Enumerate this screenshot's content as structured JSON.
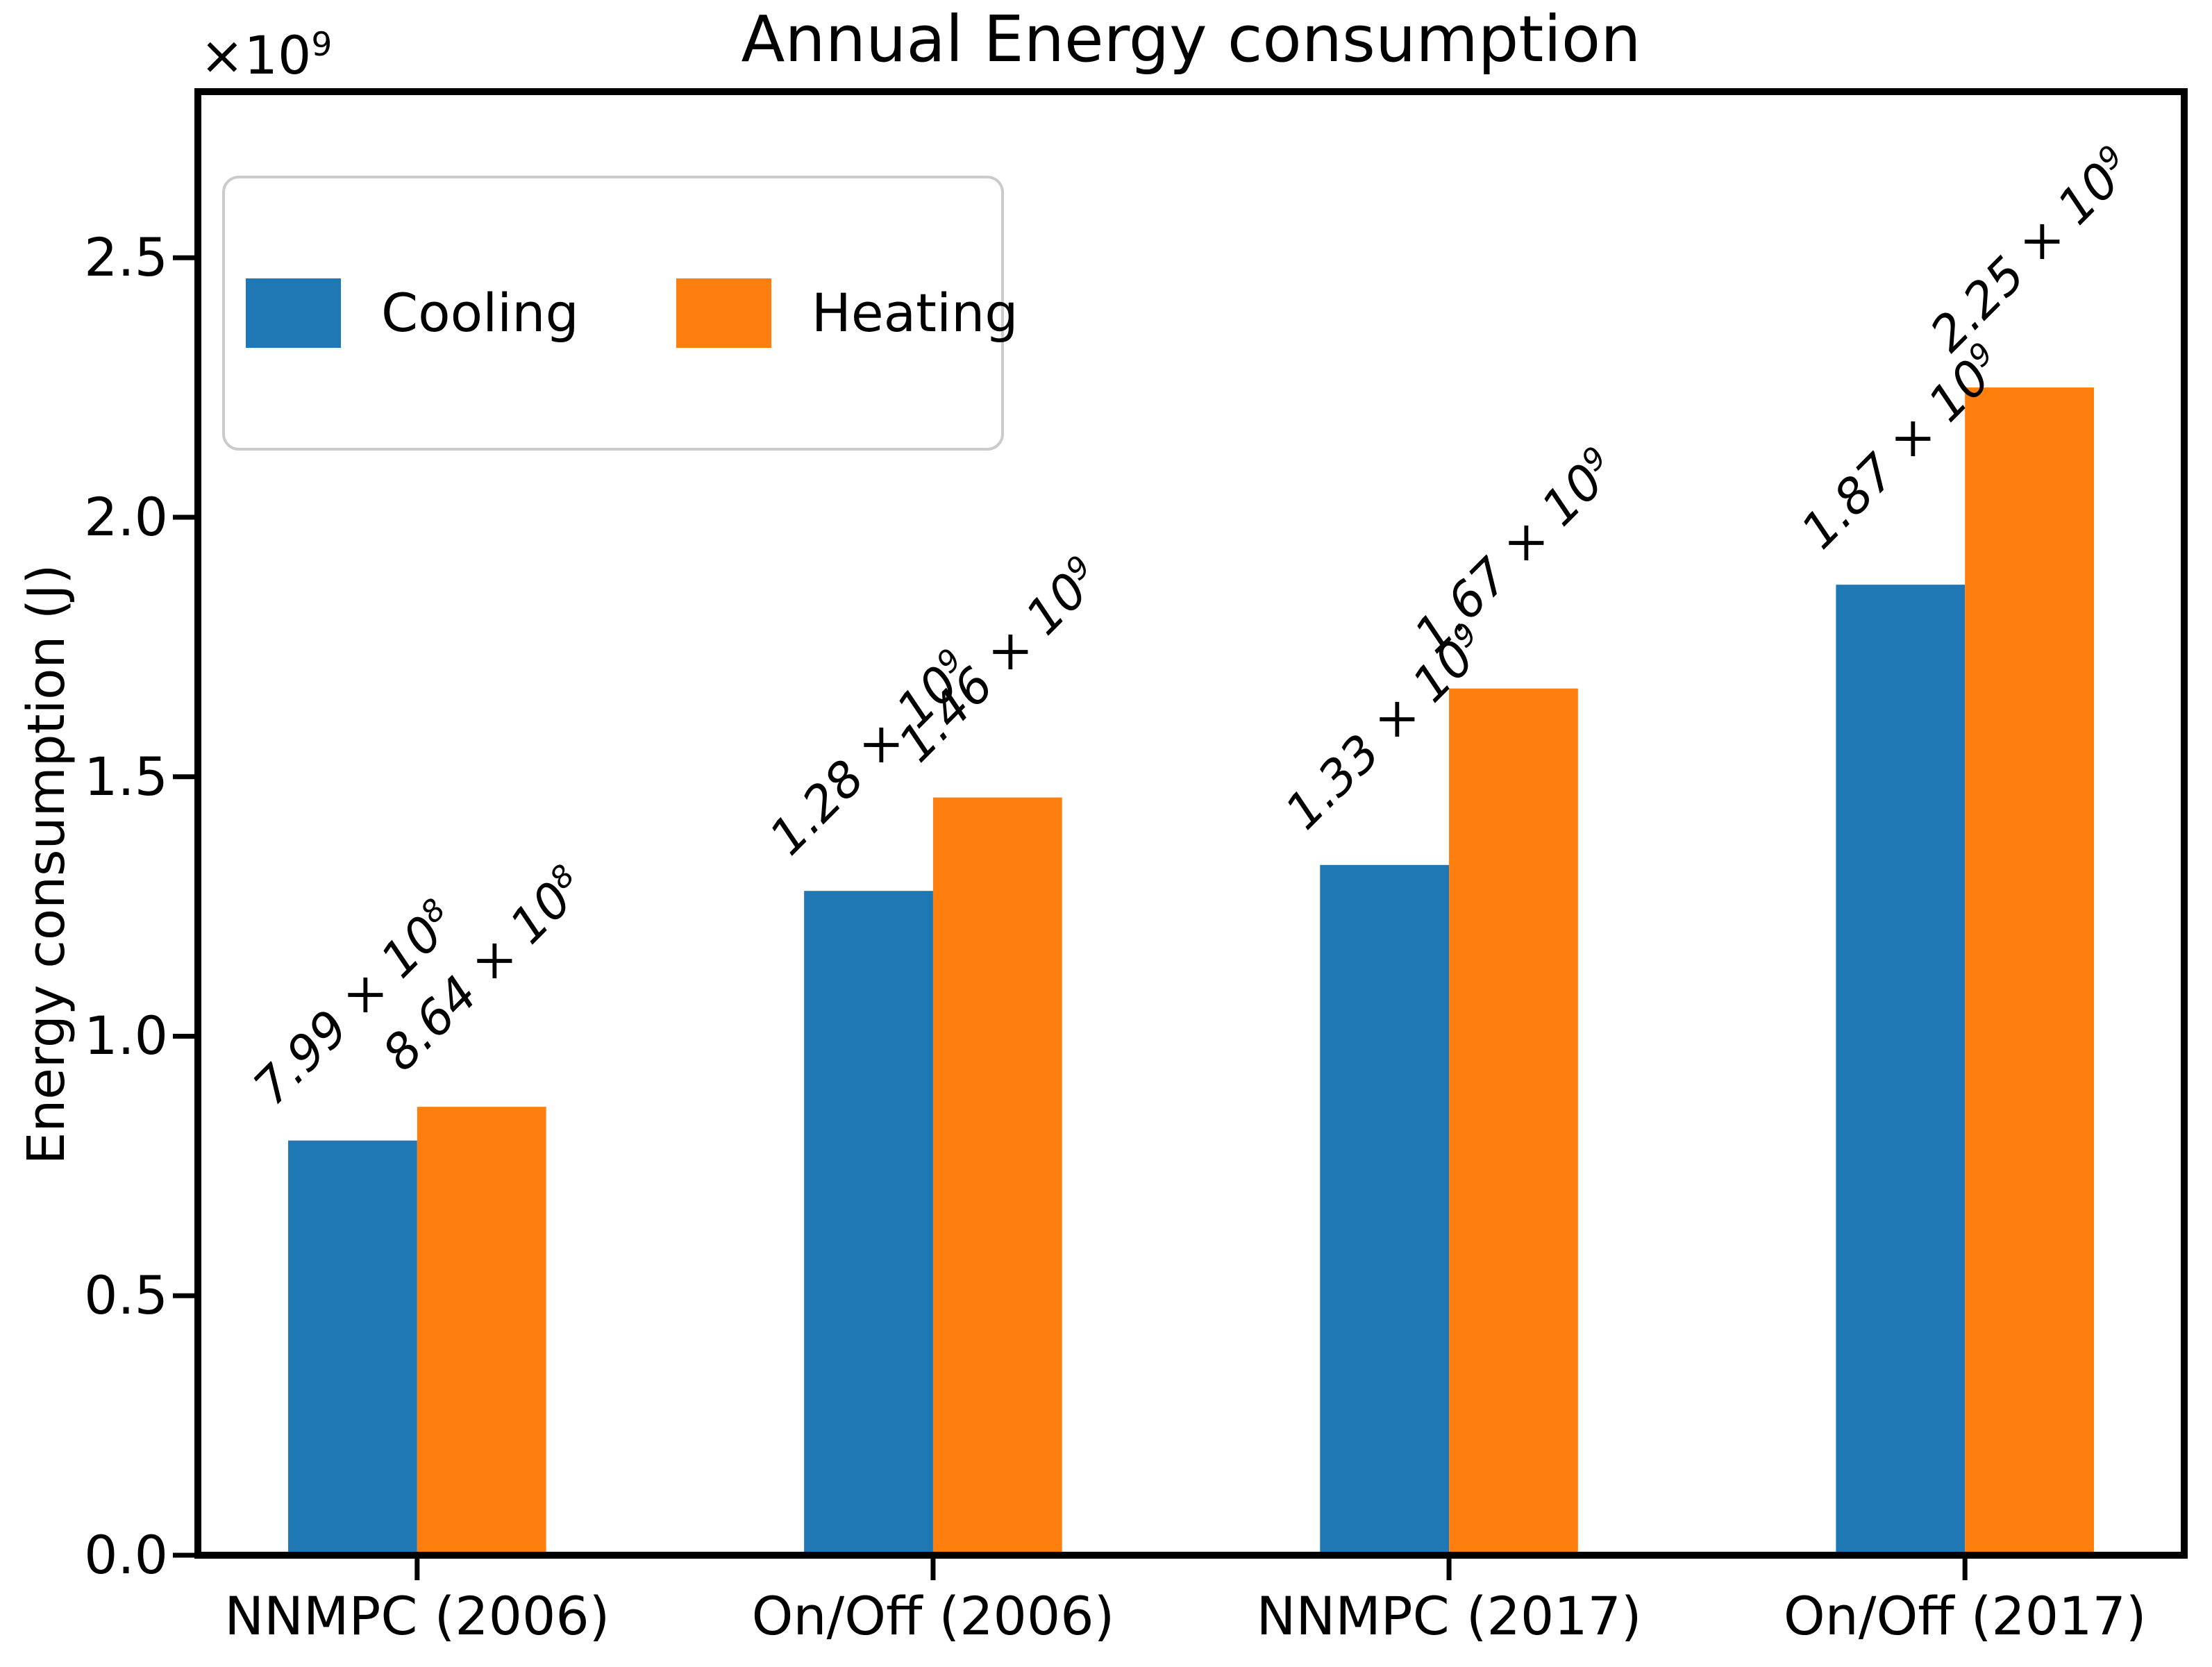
{
  "chart_data": {
    "type": "bar",
    "title": "Annual Energy consumption",
    "xlabel": "",
    "ylabel": "Energy consumption (J)",
    "y_offset": {
      "base": "×10",
      "exponent": "9"
    },
    "categories": [
      "NNMPC (2006)",
      "On/Off (2006)",
      "NNMPC (2017)",
      "On/Off (2017)"
    ],
    "series": [
      {
        "name": "Cooling",
        "color": "#1f77b4",
        "values": [
          799000000,
          1280000000,
          1330000000,
          1870000000
        ],
        "value_labels": [
          {
            "mantissa": "7.99",
            "times": "×",
            "base": "10",
            "exponent": "8"
          },
          {
            "mantissa": "1.28",
            "times": "×",
            "base": "10",
            "exponent": "9"
          },
          {
            "mantissa": "1.33",
            "times": "×",
            "base": "10",
            "exponent": "9"
          },
          {
            "mantissa": "1.87",
            "times": "×",
            "base": "10",
            "exponent": "9"
          }
        ]
      },
      {
        "name": "Heating",
        "color": "#ff7f0e",
        "values": [
          864000000,
          1460000000,
          1670000000,
          2250000000
        ],
        "value_labels": [
          {
            "mantissa": "8.64",
            "times": "×",
            "base": "10",
            "exponent": "8"
          },
          {
            "mantissa": "1.46",
            "times": "×",
            "base": "10",
            "exponent": "9"
          },
          {
            "mantissa": "1.67",
            "times": "×",
            "base": "10",
            "exponent": "9"
          },
          {
            "mantissa": "2.25",
            "times": "×",
            "base": "10",
            "exponent": "9"
          }
        ]
      }
    ],
    "y_ticks": [
      {
        "label": "0.0",
        "value": 0
      },
      {
        "label": "0.5",
        "value": 500000000
      },
      {
        "label": "1.0",
        "value": 1000000000
      },
      {
        "label": "1.5",
        "value": 1500000000
      },
      {
        "label": "2.0",
        "value": 2000000000
      },
      {
        "label": "2.5",
        "value": 2500000000
      }
    ],
    "ylim": [
      0,
      2820000000
    ],
    "grid": false,
    "legend_position": "upper left",
    "bar_label_rotation_deg": 45,
    "bar_label_style": "italic"
  }
}
